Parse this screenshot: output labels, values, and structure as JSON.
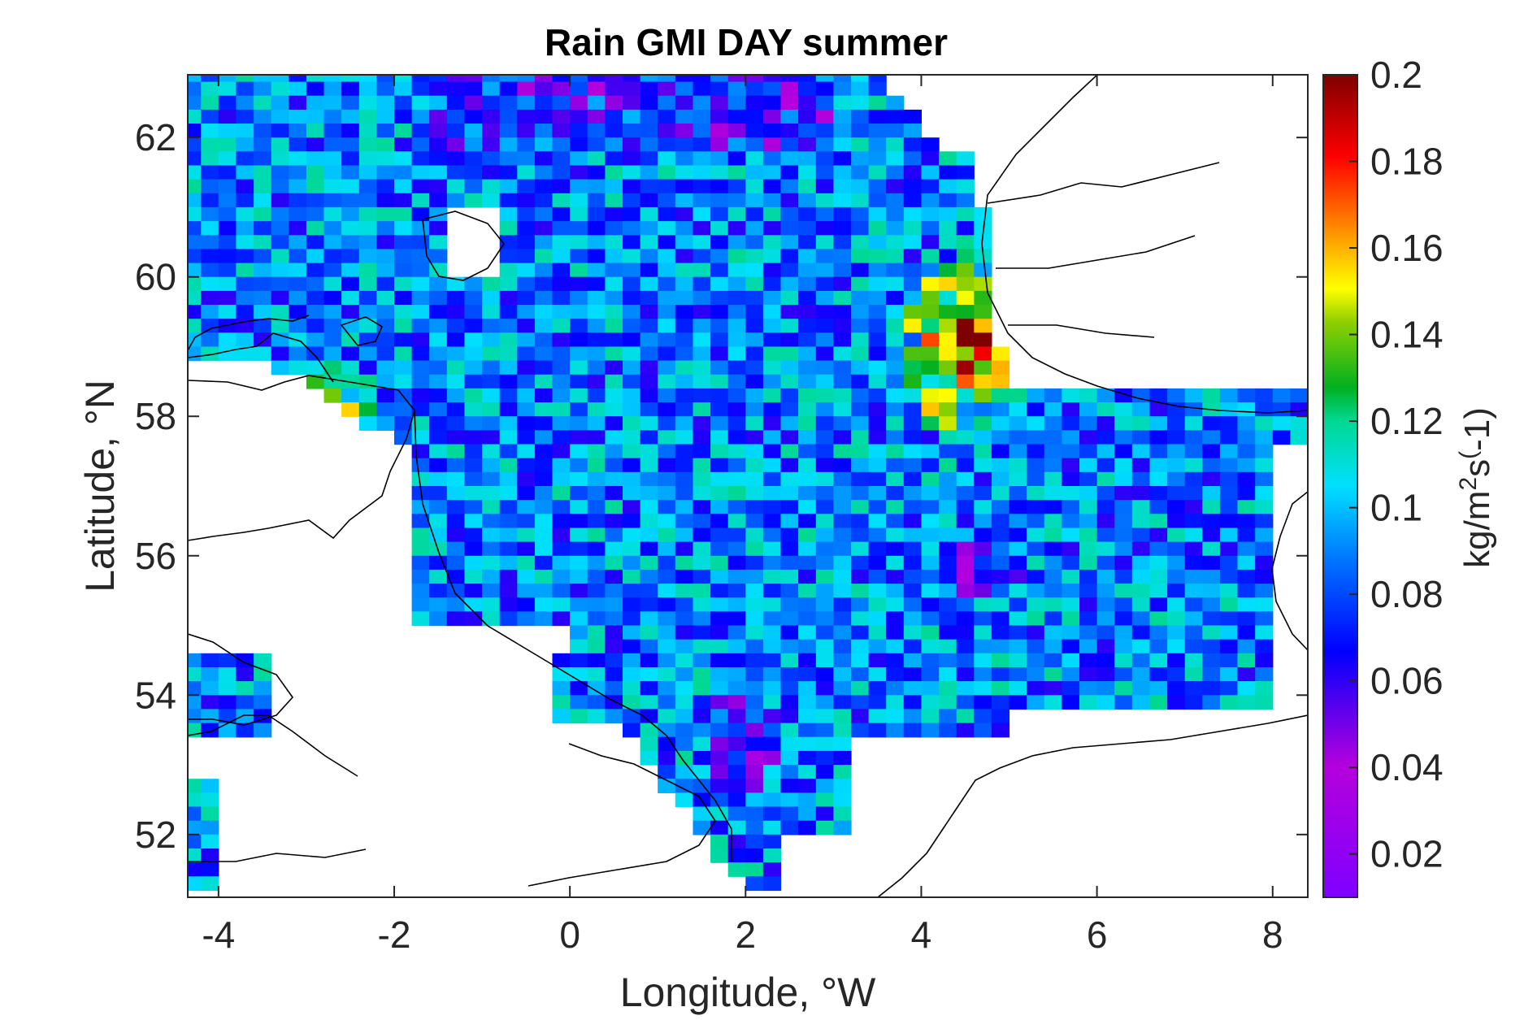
{
  "chart_data": {
    "type": "heatmap",
    "title": "Rain GMI DAY summer",
    "xlabel": "Longitude, °W",
    "ylabel": "Latitude, °N",
    "xlim": [
      -4.35,
      8.4
    ],
    "ylim": [
      51.1,
      62.9
    ],
    "x_ticks": [
      -4,
      -2,
      0,
      2,
      4,
      6,
      8
    ],
    "x_tick_labels": [
      "-4",
      "-2",
      "0",
      "2",
      "4",
      "6",
      "8"
    ],
    "y_ticks": [
      52,
      54,
      56,
      58,
      60,
      62
    ],
    "y_tick_labels": [
      "52",
      "54",
      "56",
      "58",
      "60",
      "62"
    ],
    "grid": false,
    "colormap": "jet-like (purple → blue → cyan → green → yellow → red → dark red)",
    "colorbar": {
      "label": "kg/m²s^(-1)",
      "label_parts": [
        "kg/m",
        "2",
        "s",
        "(",
        "-1)"
      ],
      "clim": [
        0.01,
        0.2
      ],
      "ticks": [
        0.02,
        0.04,
        0.06,
        0.08,
        0.1,
        0.12,
        0.14,
        0.16,
        0.18,
        0.2
      ],
      "tick_labels": [
        "0.02",
        "0.04",
        "0.06",
        "0.08",
        "0.1",
        "0.12",
        "0.14",
        "0.16",
        "0.18",
        "0.2"
      ]
    },
    "grid_cell_size_deg": 0.2,
    "regions_of_high_values": [
      {
        "lon": [
          3.9,
          5.1
        ],
        "lat": [
          57.8,
          60.3
        ],
        "approx_value": 0.18
      },
      {
        "lon": [
          -3.2,
          -2.3
        ],
        "lat": [
          57.6,
          58.6
        ],
        "approx_value": 0.17
      }
    ],
    "regions_of_low_values": [
      {
        "lon": [
          1.6,
          2.4
        ],
        "lat": [
          52.0,
          54.3
        ],
        "approx_value": 0.04
      },
      {
        "lon": [
          3.8,
          5.0
        ],
        "lat": [
          55.4,
          56.3
        ],
        "approx_value": 0.04
      }
    ]
  },
  "colors": {
    "axis": "#262626",
    "title": "#000000",
    "coastline": "#000000",
    "background": "#ffffff"
  }
}
